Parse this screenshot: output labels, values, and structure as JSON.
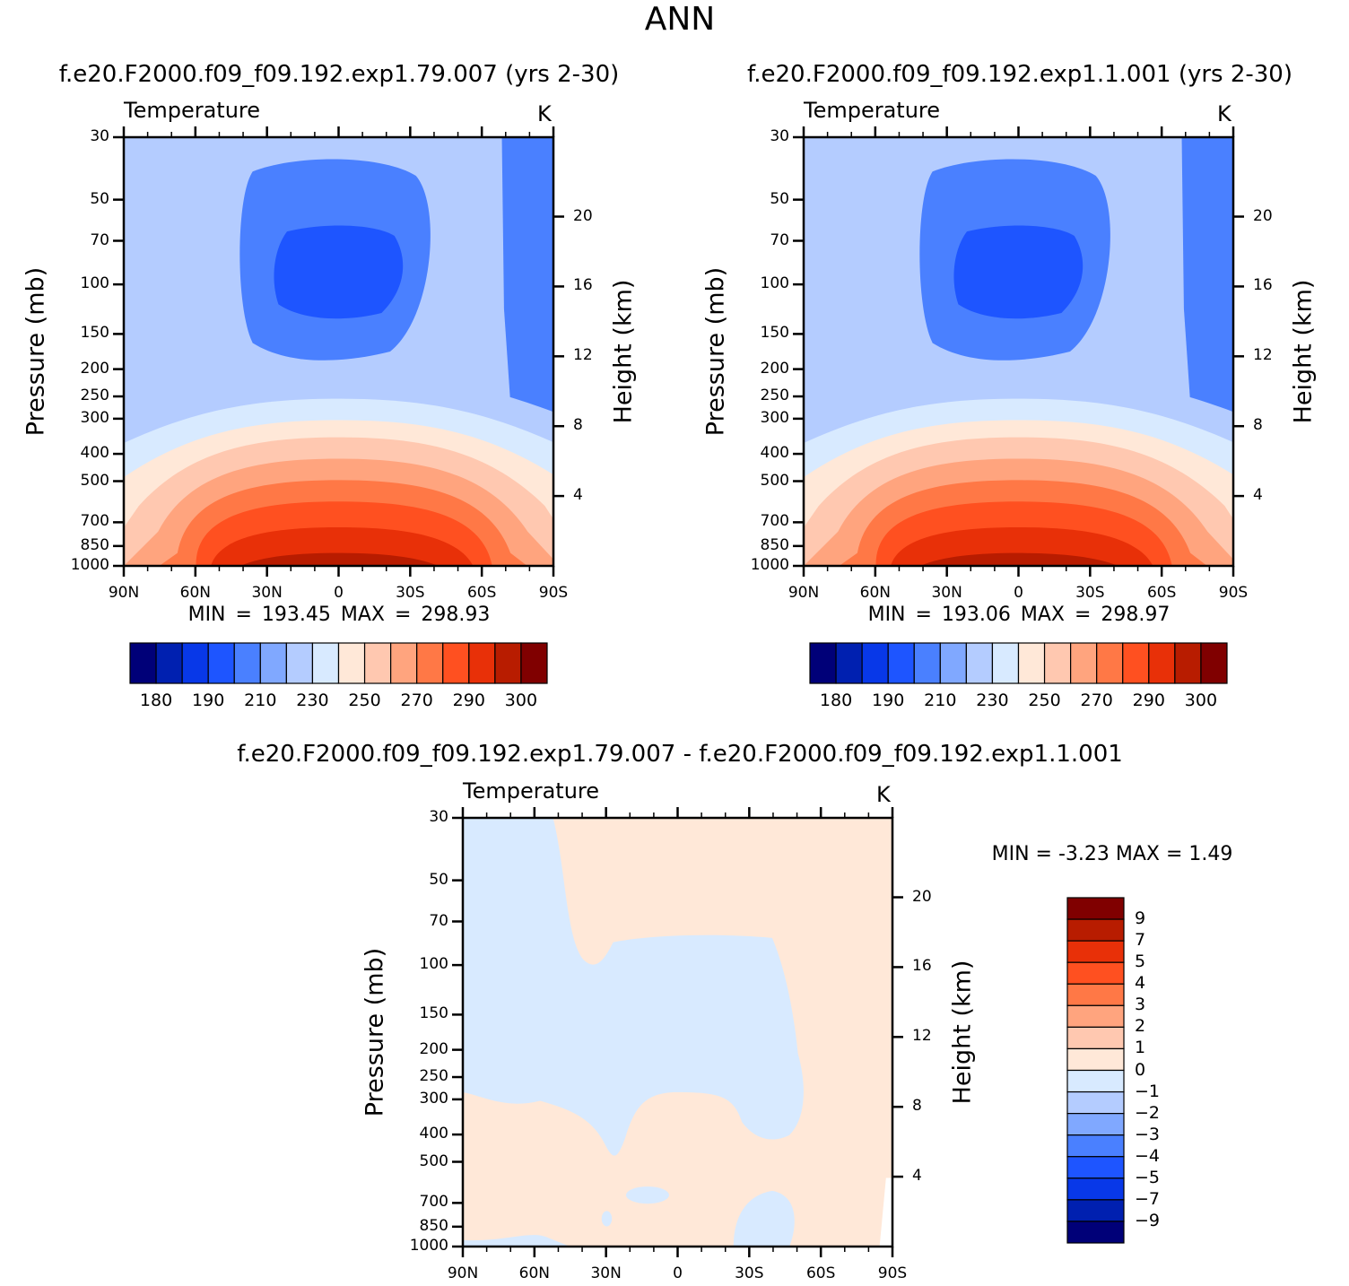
{
  "figure": {
    "main_title": "ANN",
    "difference_title": "f.e20.F2000.f09_f09.192.exp1.79.007 - f.e20.F2000.f09_f09.192.exp1.1.001"
  },
  "chart_data": [
    {
      "type": "contour",
      "title": "f.e20.F2000.f09_f09.192.exp1.79.007 (yrs 2-30)",
      "variable": "Temperature",
      "units": "K",
      "ylabel": "Pressure (mb)",
      "y2label": "Height (km)",
      "x_ticks": [
        "90N",
        "60N",
        "30N",
        "0",
        "30S",
        "60S",
        "90S"
      ],
      "y_ticks": [
        30,
        50,
        70,
        100,
        150,
        200,
        250,
        300,
        400,
        500,
        700,
        850,
        1000
      ],
      "y2_ticks": [
        20,
        16,
        12,
        8,
        4
      ],
      "stats": {
        "min_label": "MIN =",
        "min": "193.45",
        "max_label": "MAX =",
        "max": "298.93"
      },
      "colorbar": {
        "levels_labeled": [
          "180",
          "190",
          "210",
          "230",
          "250",
          "270",
          "290",
          "300"
        ],
        "colors": [
          "#000078",
          "#0020b0",
          "#0838e8",
          "#1e55ff",
          "#4a80ff",
          "#80a8ff",
          "#b4ccff",
          "#d8eaff",
          "#ffe8d8",
          "#ffc8b0",
          "#ffa47e",
          "#ff7846",
          "#ff5020",
          "#e83008",
          "#b81c00",
          "#800000"
        ]
      }
    },
    {
      "type": "contour",
      "title": "f.e20.F2000.f09_f09.192.exp1.1.001 (yrs 2-30)",
      "variable": "Temperature",
      "units": "K",
      "ylabel": "Pressure (mb)",
      "y2label": "Height (km)",
      "x_ticks": [
        "90N",
        "60N",
        "30N",
        "0",
        "30S",
        "60S",
        "90S"
      ],
      "y_ticks": [
        30,
        50,
        70,
        100,
        150,
        200,
        250,
        300,
        400,
        500,
        700,
        850,
        1000
      ],
      "y2_ticks": [
        20,
        16,
        12,
        8,
        4
      ],
      "stats": {
        "min_label": "MIN =",
        "min": "193.06",
        "max_label": "MAX =",
        "max": "298.97"
      },
      "colorbar": {
        "levels_labeled": [
          "180",
          "190",
          "210",
          "230",
          "250",
          "270",
          "290",
          "300"
        ],
        "colors": [
          "#000078",
          "#0020b0",
          "#0838e8",
          "#1e55ff",
          "#4a80ff",
          "#80a8ff",
          "#b4ccff",
          "#d8eaff",
          "#ffe8d8",
          "#ffc8b0",
          "#ffa47e",
          "#ff7846",
          "#ff5020",
          "#e83008",
          "#b81c00",
          "#800000"
        ]
      }
    },
    {
      "type": "contour",
      "variable": "Temperature",
      "units": "K",
      "ylabel": "Pressure (mb)",
      "y2label": "Height (km)",
      "x_ticks": [
        "90N",
        "60N",
        "30N",
        "0",
        "30S",
        "60S",
        "90S"
      ],
      "y_ticks": [
        30,
        50,
        70,
        100,
        150,
        200,
        250,
        300,
        400,
        500,
        700,
        850,
        1000
      ],
      "y2_ticks": [
        20,
        16,
        12,
        8,
        4
      ],
      "stats": {
        "min_label": "MIN =",
        "min": "-3.23",
        "max_label": "MAX =",
        "max": "1.49"
      },
      "colorbar": {
        "levels_labeled": [
          "9",
          "7",
          "5",
          "4",
          "3",
          "2",
          "1",
          "0",
          "-1",
          "-2",
          "-3",
          "-4",
          "-5",
          "-7",
          "-9"
        ],
        "colors": [
          "#800000",
          "#b81c00",
          "#e83008",
          "#ff5020",
          "#ff7846",
          "#ffa47e",
          "#ffc8b0",
          "#ffe8d8",
          "#d8eaff",
          "#b4ccff",
          "#80a8ff",
          "#4a80ff",
          "#1e55ff",
          "#0838e8",
          "#0020b0",
          "#000078"
        ]
      }
    }
  ]
}
